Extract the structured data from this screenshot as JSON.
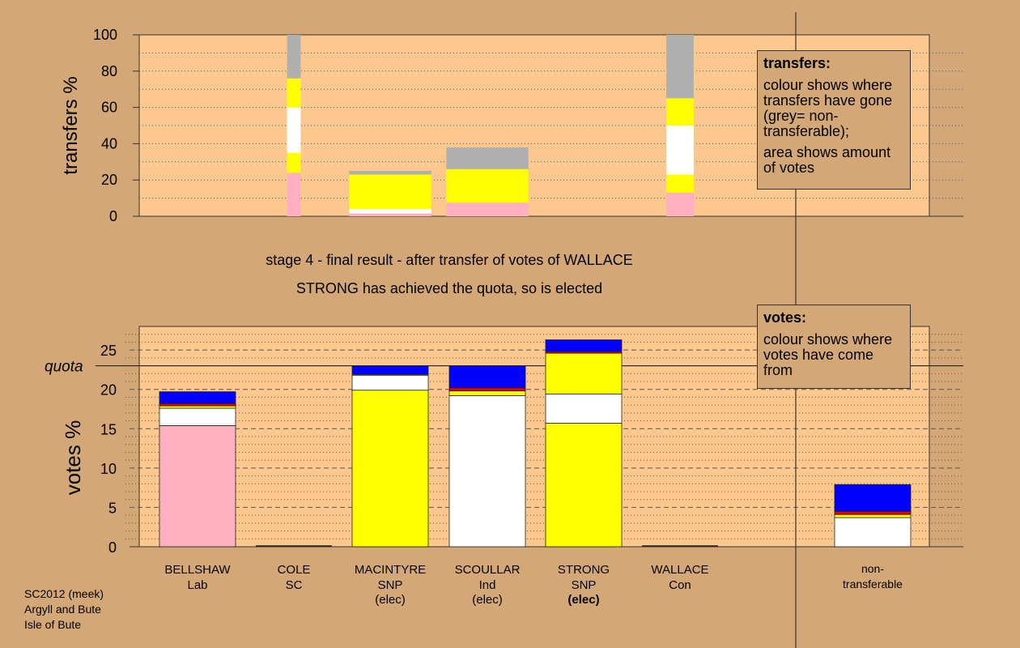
{
  "stage_caption": "stage 4 - final result - after transfer of votes of WALLACE",
  "elected_caption": "STRONG has achieved the quota, so is elected",
  "transfers_legend": {
    "title": "transfers:",
    "line1": "colour shows where transfers have gone (grey= non-transferable);",
    "line2": "area shows amount of votes"
  },
  "votes_legend": {
    "title": "votes:",
    "line1": "colour shows where votes have come from"
  },
  "source": {
    "line1": "SC2012 (meek)",
    "line2": "Argyll and Bute",
    "line3": "Isle of Bute"
  },
  "colors": {
    "background": "#d4a876",
    "plot": "#fcc88e",
    "pink": "#ffb0c0",
    "white": "#ffffff",
    "yellow": "#ffff00",
    "blue": "#0000ff",
    "grey": "#b0b0b0",
    "red": "#e00000"
  },
  "chart_data": [
    {
      "type": "bar",
      "name": "transfers",
      "ylabel": "transfers %",
      "ylim": [
        0,
        100
      ],
      "yticks": [
        0,
        20,
        40,
        60,
        80,
        100
      ],
      "grid": true,
      "bars": [
        {
          "candidate": "COLE",
          "width_pct_of_votes": 0.5,
          "segments": [
            {
              "color": "pink",
              "from": 0,
              "to": 24
            },
            {
              "color": "yellow",
              "from": 24,
              "to": 35
            },
            {
              "color": "white",
              "from": 35,
              "to": 60
            },
            {
              "color": "yellow",
              "from": 60,
              "to": 76
            },
            {
              "color": "grey",
              "from": 76,
              "to": 100
            }
          ]
        },
        {
          "candidate": "MACINTYRE",
          "width_pct_of_votes": 3,
          "segments": [
            {
              "color": "pink",
              "from": 0,
              "to": 1.5
            },
            {
              "color": "white",
              "from": 1.5,
              "to": 4
            },
            {
              "color": "yellow",
              "from": 4,
              "to": 23
            },
            {
              "color": "grey",
              "from": 23,
              "to": 25
            }
          ]
        },
        {
          "candidate": "SCOULLAR",
          "width_pct_of_votes": 3,
          "segments": [
            {
              "color": "pink",
              "from": 0,
              "to": 7.5
            },
            {
              "color": "yellow",
              "from": 7.5,
              "to": 26
            },
            {
              "color": "grey",
              "from": 26,
              "to": 38
            }
          ]
        },
        {
          "candidate": "WALLACE",
          "width_pct_of_votes": 1,
          "segments": [
            {
              "color": "pink",
              "from": 0,
              "to": 13
            },
            {
              "color": "yellow",
              "from": 13,
              "to": 23
            },
            {
              "color": "white",
              "from": 23,
              "to": 50
            },
            {
              "color": "yellow",
              "from": 50,
              "to": 65
            },
            {
              "color": "grey",
              "from": 65,
              "to": 100
            }
          ]
        }
      ]
    },
    {
      "type": "bar",
      "name": "votes",
      "ylabel": "votes %",
      "ylim": [
        0,
        28
      ],
      "yticks": [
        0,
        5,
        10,
        15,
        20,
        25
      ],
      "quota": 23,
      "quota_label": "quota",
      "grid": true,
      "categories": [
        {
          "name": "BELLSHAW",
          "party": "Lab",
          "note": "",
          "bold_note": false
        },
        {
          "name": "COLE",
          "party": "SC",
          "note": "",
          "bold_note": false
        },
        {
          "name": "MACINTYRE",
          "party": "SNP",
          "note": "(elec)",
          "bold_note": false
        },
        {
          "name": "SCOULLAR",
          "party": "Ind",
          "note": "(elec)",
          "bold_note": false
        },
        {
          "name": "STRONG",
          "party": "SNP",
          "note": "(elec)",
          "bold_note": true
        },
        {
          "name": "WALLACE",
          "party": "Con",
          "note": "",
          "bold_note": false
        }
      ],
      "nontransferable_label": [
        "non-",
        "transferable"
      ],
      "stacks": [
        [
          {
            "color": "pink",
            "from": 0,
            "to": 15.4
          },
          {
            "color": "white",
            "from": 15.4,
            "to": 17.6
          },
          {
            "color": "yellow",
            "from": 17.6,
            "to": 17.9
          },
          {
            "color": "red",
            "from": 17.9,
            "to": 18.2
          },
          {
            "color": "blue",
            "from": 18.2,
            "to": 19.7
          }
        ],
        [],
        [
          {
            "color": "yellow",
            "from": 0,
            "to": 19.9
          },
          {
            "color": "white",
            "from": 19.9,
            "to": 21.8
          },
          {
            "color": "yellow",
            "from": 21.8,
            "to": 21.9
          },
          {
            "color": "blue",
            "from": 21.9,
            "to": 23
          }
        ],
        [
          {
            "color": "white",
            "from": 0,
            "to": 19.2
          },
          {
            "color": "yellow",
            "from": 19.2,
            "to": 19.8
          },
          {
            "color": "red",
            "from": 19.8,
            "to": 20.2
          },
          {
            "color": "blue",
            "from": 20.2,
            "to": 23
          }
        ],
        [
          {
            "color": "yellow",
            "from": 0,
            "to": 15.7
          },
          {
            "color": "white",
            "from": 15.7,
            "to": 19.4
          },
          {
            "color": "yellow",
            "from": 19.4,
            "to": 24.6
          },
          {
            "color": "red",
            "from": 24.6,
            "to": 24.8
          },
          {
            "color": "blue",
            "from": 24.8,
            "to": 26.3
          }
        ],
        []
      ],
      "nontransferable": [
        {
          "color": "white",
          "from": 0,
          "to": 3.7
        },
        {
          "color": "yellow",
          "from": 3.7,
          "to": 4.1
        },
        {
          "color": "red",
          "from": 4.1,
          "to": 4.5
        },
        {
          "color": "blue",
          "from": 4.5,
          "to": 7.9
        }
      ]
    }
  ]
}
